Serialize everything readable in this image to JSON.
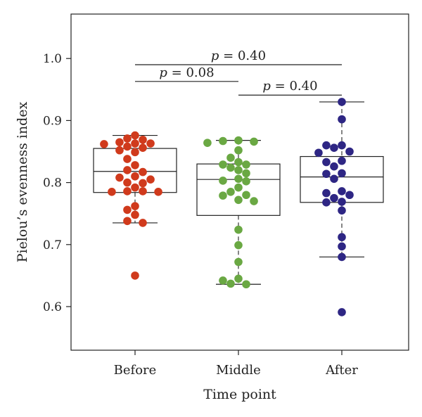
{
  "chart_data": {
    "type": "box",
    "xlabel": "Time point",
    "ylabel": "Pielou’s evenness index",
    "ylim": [
      0.55,
      1.06
    ],
    "yticks": [
      "0.6",
      "0.7",
      "0.8",
      "0.9",
      "1.0"
    ],
    "categories": [
      "Before",
      "Middle",
      "After"
    ],
    "groups": [
      {
        "name": "Before",
        "color": "#d03a1c",
        "box": {
          "whisker_low": 0.735,
          "q1": 0.784,
          "median": 0.818,
          "q3": 0.855,
          "whisker_high": 0.876
        },
        "points": [
          0.876,
          0.871,
          0.869,
          0.865,
          0.863,
          0.863,
          0.862,
          0.858,
          0.856,
          0.852,
          0.849,
          0.838,
          0.828,
          0.82,
          0.817,
          0.81,
          0.808,
          0.805,
          0.8,
          0.799,
          0.792,
          0.786,
          0.786,
          0.785,
          0.785,
          0.762,
          0.756,
          0.748,
          0.738,
          0.735,
          0.65
        ]
      },
      {
        "name": "Middle",
        "color": "#6aa843",
        "box": {
          "whisker_low": 0.636,
          "q1": 0.747,
          "median": 0.805,
          "q3": 0.83,
          "whisker_high": 0.868
        },
        "points": [
          0.868,
          0.867,
          0.866,
          0.864,
          0.852,
          0.84,
          0.833,
          0.829,
          0.829,
          0.824,
          0.82,
          0.815,
          0.806,
          0.803,
          0.802,
          0.792,
          0.785,
          0.78,
          0.779,
          0.772,
          0.77,
          0.724,
          0.699,
          0.672,
          0.645,
          0.642,
          0.637,
          0.636
        ]
      },
      {
        "name": "After",
        "color": "#2e2684",
        "box": {
          "whisker_low": 0.68,
          "q1": 0.768,
          "median": 0.809,
          "q3": 0.842,
          "whisker_high": 0.93
        },
        "points": [
          0.93,
          0.902,
          0.86,
          0.86,
          0.856,
          0.85,
          0.848,
          0.835,
          0.833,
          0.826,
          0.815,
          0.814,
          0.806,
          0.786,
          0.783,
          0.78,
          0.775,
          0.769,
          0.768,
          0.755,
          0.712,
          0.697,
          0.68,
          0.591
        ]
      }
    ],
    "comparisons": [
      {
        "from": "Before",
        "to": "After",
        "y": 0.99,
        "label": "p = 0.40"
      },
      {
        "from": "Before",
        "to": "Middle",
        "y": 0.963,
        "label": "p = 0.08"
      },
      {
        "from": "Middle",
        "to": "After",
        "y": 0.941,
        "label": "p = 0.40"
      }
    ]
  }
}
